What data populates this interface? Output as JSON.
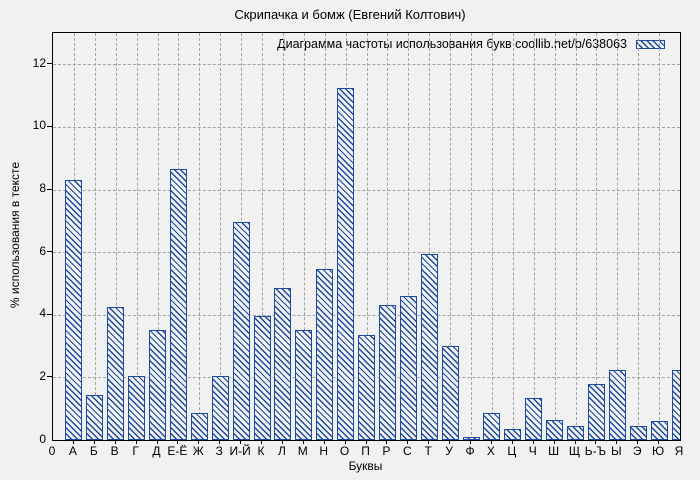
{
  "window": {
    "background": "#f1f1f1"
  },
  "chart_data": {
    "type": "bar",
    "title": "Скрипачка и бомж (Евгений Колтович)",
    "legend": "Диаграмма частоты использования букв coollib.net/b/638063",
    "xlabel": "Буквы",
    "ylabel": "% использования в тексте",
    "origin_label": "0",
    "categories": [
      "А",
      "Б",
      "В",
      "Г",
      "Д",
      "Е-Ё",
      "Ж",
      "З",
      "И-Й",
      "К",
      "Л",
      "М",
      "Н",
      "О",
      "П",
      "Р",
      "С",
      "Т",
      "У",
      "Ф",
      "Х",
      "Ц",
      "Ч",
      "Ш",
      "Щ",
      "Ь-Ъ",
      "Ы",
      "Э",
      "Ю",
      "Я"
    ],
    "values": [
      8.3,
      1.45,
      4.25,
      2.05,
      3.5,
      8.65,
      0.85,
      2.05,
      6.95,
      3.95,
      4.85,
      3.5,
      5.45,
      11.25,
      3.35,
      4.3,
      4.6,
      5.95,
      3.0,
      0.1,
      0.85,
      0.35,
      1.35,
      0.65,
      0.45,
      1.8,
      2.25,
      0.45,
      0.6,
      2.25
    ],
    "y_ticks": [
      0,
      2,
      4,
      6,
      8,
      10,
      12
    ],
    "ylim": [
      0,
      13
    ],
    "grid": true,
    "legend_position": "top-right-inside",
    "bar_color": "#1b4a9e",
    "bar_fill_background": "#f1f1f1",
    "hatch_style": "diagonal-backslash",
    "grid_color": "#a2a2a2",
    "axis_color": "#000000"
  }
}
